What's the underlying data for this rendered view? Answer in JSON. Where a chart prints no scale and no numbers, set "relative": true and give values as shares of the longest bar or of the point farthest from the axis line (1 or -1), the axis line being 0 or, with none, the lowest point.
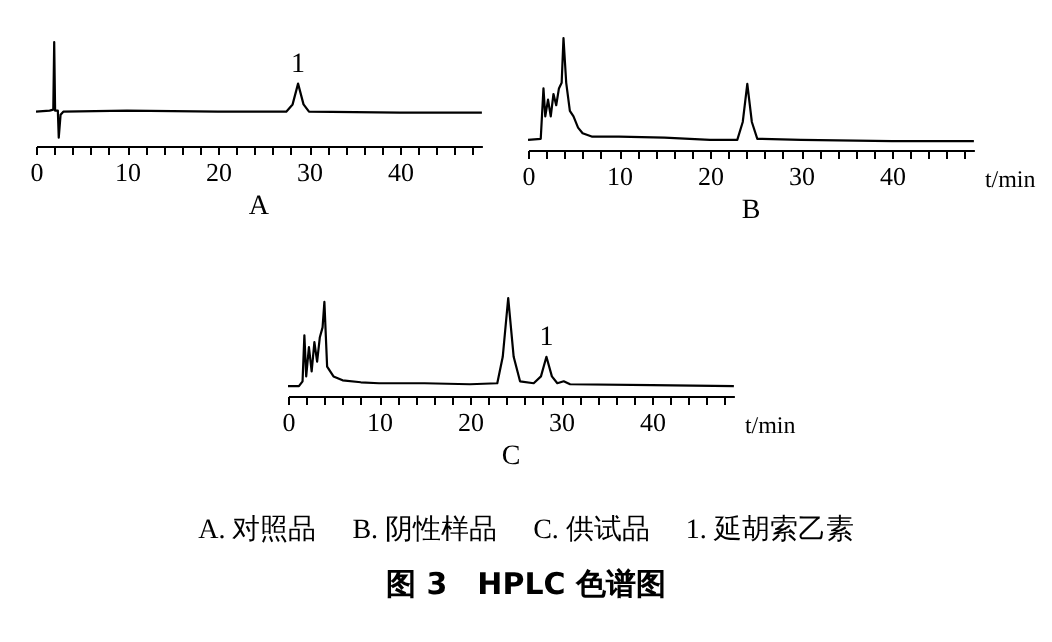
{
  "chart_data": [
    {
      "type": "line",
      "title": "A",
      "relative": true,
      "tick_labels": "x",
      "xlim": [
        0,
        49
      ],
      "xticks": [
        0,
        {
          "value": 2,
          "label": null
        },
        {
          "value": 4,
          "label": null
        },
        {
          "value": 6,
          "label": null
        },
        {
          "value": 8,
          "label": null
        },
        10,
        {
          "value": 12,
          "label": null
        },
        {
          "value": 14,
          "label": null
        },
        {
          "value": 16,
          "label": null
        },
        {
          "value": 18,
          "label": null
        },
        20,
        {
          "value": 22,
          "label": null
        },
        {
          "value": 24,
          "label": null
        },
        {
          "value": 26,
          "label": null
        },
        {
          "value": 28,
          "label": null
        },
        30,
        {
          "value": 32,
          "label": null
        },
        {
          "value": 34,
          "label": null
        },
        {
          "value": 36,
          "label": null
        },
        {
          "value": 38,
          "label": null
        },
        40,
        {
          "value": 42,
          "label": null
        },
        {
          "value": 44,
          "label": null
        },
        {
          "value": 46,
          "label": null
        },
        {
          "value": 48,
          "label": null
        }
      ],
      "series": [
        {
          "color": "#000000",
          "x": [
            0,
            1.5,
            1.9,
            2.0,
            2.1,
            2.4,
            2.5,
            2.7,
            3,
            10,
            20,
            27.5,
            28.2,
            28.8,
            29.4,
            30,
            40,
            49
          ],
          "values": [
            0.33,
            0.34,
            0.35,
            1.0,
            0.34,
            0.34,
            0.08,
            0.3,
            0.33,
            0.34,
            0.33,
            0.33,
            0.4,
            0.6,
            0.4,
            0.33,
            0.32,
            0.32
          ]
        }
      ],
      "annotations": [
        {
          "text": "1",
          "x": 28.8,
          "y": 0.6
        }
      ]
    },
    {
      "type": "line",
      "title": "B",
      "xlabel": "t/min",
      "relative": true,
      "tick_labels": "x",
      "xlim": [
        0,
        49
      ],
      "xticks": [
        0,
        {
          "value": 2,
          "label": null
        },
        {
          "value": 4,
          "label": null
        },
        {
          "value": 6,
          "label": null
        },
        {
          "value": 8,
          "label": null
        },
        10,
        {
          "value": 12,
          "label": null
        },
        {
          "value": 14,
          "label": null
        },
        {
          "value": 16,
          "label": null
        },
        {
          "value": 18,
          "label": null
        },
        20,
        {
          "value": 22,
          "label": null
        },
        {
          "value": 24,
          "label": null
        },
        {
          "value": 26,
          "label": null
        },
        {
          "value": 28,
          "label": null
        },
        30,
        {
          "value": 32,
          "label": null
        },
        {
          "value": 34,
          "label": null
        },
        {
          "value": 36,
          "label": null
        },
        {
          "value": 38,
          "label": null
        },
        40,
        {
          "value": 42,
          "label": null
        },
        {
          "value": 44,
          "label": null
        },
        {
          "value": 46,
          "label": null
        },
        {
          "value": 48,
          "label": null
        }
      ],
      "series": [
        {
          "color": "#000000",
          "x": [
            0,
            1.4,
            1.7,
            1.9,
            2.2,
            2.5,
            2.8,
            3.1,
            3.4,
            3.7,
            3.9,
            4.2,
            4.6,
            5,
            5.5,
            6,
            7,
            10,
            15,
            20,
            23,
            23.6,
            24.1,
            24.6,
            25.2,
            30,
            40,
            49
          ],
          "values": [
            0.09,
            0.1,
            0.55,
            0.3,
            0.45,
            0.3,
            0.5,
            0.4,
            0.55,
            0.6,
            1.0,
            0.6,
            0.35,
            0.3,
            0.2,
            0.15,
            0.12,
            0.12,
            0.11,
            0.09,
            0.09,
            0.25,
            0.59,
            0.25,
            0.1,
            0.09,
            0.08,
            0.08
          ]
        }
      ]
    },
    {
      "type": "line",
      "title": "C",
      "xlabel": "t/min",
      "relative": true,
      "tick_labels": "x",
      "xlim": [
        0,
        49
      ],
      "xticks": [
        0,
        {
          "value": 2,
          "label": null
        },
        {
          "value": 4,
          "label": null
        },
        {
          "value": 6,
          "label": null
        },
        {
          "value": 8,
          "label": null
        },
        10,
        {
          "value": 12,
          "label": null
        },
        {
          "value": 14,
          "label": null
        },
        {
          "value": 16,
          "label": null
        },
        {
          "value": 18,
          "label": null
        },
        20,
        {
          "value": 22,
          "label": null
        },
        {
          "value": 24,
          "label": null
        },
        {
          "value": 26,
          "label": null
        },
        {
          "value": 28,
          "label": null
        },
        30,
        {
          "value": 32,
          "label": null
        },
        {
          "value": 34,
          "label": null
        },
        {
          "value": 36,
          "label": null
        },
        {
          "value": 38,
          "label": null
        },
        40,
        {
          "value": 42,
          "label": null
        },
        {
          "value": 44,
          "label": null
        },
        {
          "value": 46,
          "label": null
        },
        {
          "value": 48,
          "label": null
        }
      ],
      "series": [
        {
          "color": "#000000",
          "x": [
            0,
            1.2,
            1.6,
            1.8,
            2.0,
            2.3,
            2.6,
            2.9,
            3.2,
            3.5,
            3.8,
            4.0,
            4.3,
            5,
            6,
            8,
            10,
            15,
            20,
            23,
            23.6,
            24.2,
            24.8,
            25.5,
            27,
            27.8,
            28.4,
            29,
            29.6,
            30.3,
            31,
            40,
            49
          ],
          "values": [
            0.1,
            0.1,
            0.15,
            0.62,
            0.2,
            0.5,
            0.25,
            0.55,
            0.35,
            0.6,
            0.7,
            0.96,
            0.3,
            0.2,
            0.16,
            0.14,
            0.13,
            0.13,
            0.12,
            0.13,
            0.4,
            1.0,
            0.4,
            0.15,
            0.13,
            0.2,
            0.4,
            0.2,
            0.13,
            0.15,
            0.12,
            0.11,
            0.1
          ]
        }
      ],
      "annotations": [
        {
          "text": "1",
          "x": 28.4,
          "y": 0.4
        }
      ]
    },
    {
      "type": "other",
      "title": "图 3　HPLC 色谱图",
      "annotations": [
        "A. 对照品",
        "B. 阴性样品",
        "C. 供试品",
        "1. 延胡索乙素"
      ]
    }
  ]
}
